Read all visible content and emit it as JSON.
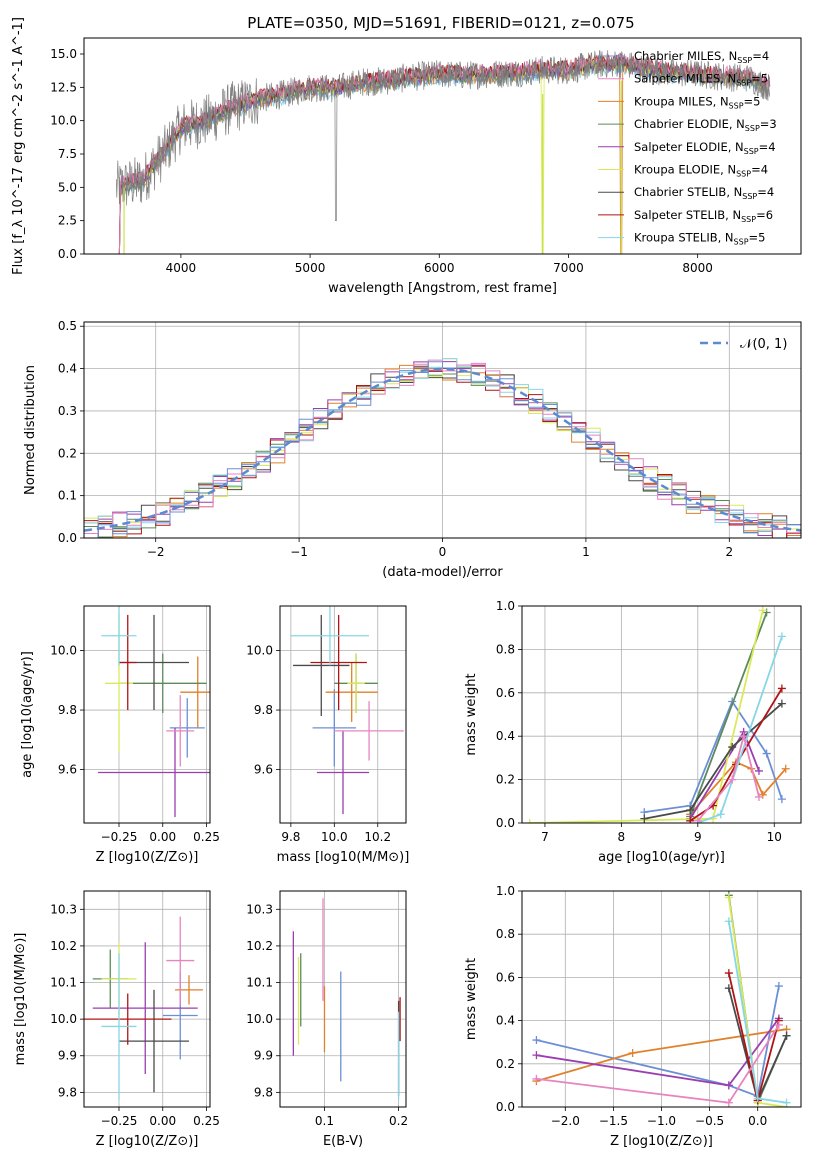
{
  "figure": {
    "title": "PLATE=0350, MJD=51691, FIBERID=0121, z=0.075"
  },
  "colors": {
    "series": [
      "#6b8fd6",
      "#e0812b",
      "#5c8a5c",
      "#9a3fb0",
      "#d8ea5a",
      "#4a4a4a",
      "#b01515",
      "#87d6e6",
      "#e883c0"
    ],
    "grid": "#b0b0b0",
    "data": "#7f7f7f"
  },
  "chart_data": [
    {
      "id": "spectrum",
      "type": "line",
      "xlabel": "wavelength [Angstrom, rest frame]",
      "ylabel": "Flux [f_λ 10^-17 erg cm^-2 s^-1 A^-1]",
      "xlim": [
        3250,
        8800
      ],
      "ylim": [
        0,
        16.2
      ],
      "xticks": [
        4000,
        5000,
        6000,
        7000,
        8000
      ],
      "yticks": [
        0.0,
        2.5,
        5.0,
        7.5,
        10.0,
        12.5,
        15.0
      ],
      "xticklabels": [
        "4000",
        "5000",
        "6000",
        "7000",
        "8000"
      ],
      "yticklabels": [
        "0.0",
        "2.5",
        "5.0",
        "7.5",
        "10.0",
        "12.5",
        "15.0"
      ],
      "continuum": [
        {
          "x": 3500,
          "y": 5.0
        },
        {
          "x": 3700,
          "y": 5.5
        },
        {
          "x": 3900,
          "y": 8.0
        },
        {
          "x": 4000,
          "y": 9.5
        },
        {
          "x": 4200,
          "y": 10.0
        },
        {
          "x": 4400,
          "y": 11.0
        },
        {
          "x": 4600,
          "y": 11.6
        },
        {
          "x": 4800,
          "y": 12.0
        },
        {
          "x": 5000,
          "y": 12.5
        },
        {
          "x": 5200,
          "y": 12.4
        },
        {
          "x": 5400,
          "y": 12.9
        },
        {
          "x": 5600,
          "y": 13.0
        },
        {
          "x": 5800,
          "y": 13.3
        },
        {
          "x": 6000,
          "y": 13.5
        },
        {
          "x": 6200,
          "y": 13.4
        },
        {
          "x": 6400,
          "y": 13.5
        },
        {
          "x": 6600,
          "y": 13.6
        },
        {
          "x": 6800,
          "y": 13.8
        },
        {
          "x": 7000,
          "y": 13.8
        },
        {
          "x": 7200,
          "y": 14.2
        },
        {
          "x": 7400,
          "y": 14.3
        },
        {
          "x": 7600,
          "y": 13.9
        },
        {
          "x": 7800,
          "y": 13.6
        },
        {
          "x": 8000,
          "y": 13.5
        },
        {
          "x": 8200,
          "y": 13.3
        },
        {
          "x": 8400,
          "y": 13.2
        },
        {
          "x": 8550,
          "y": 12.5
        }
      ],
      "legend": [
        "Chabrier MILES, N_SSP=4",
        "Salpeter MILES, N_SSP=5",
        "Kroupa MILES, N_SSP=5",
        "Chabrier ELODIE, N_SSP=3",
        "Salpeter ELODIE, N_SSP=4",
        "Kroupa ELODIE, N_SSP=4",
        "Chabrier STELIB, N_SSP=4",
        "Salpeter STELIB, N_SSP=6",
        "Kroupa STELIB, N_SSP=5"
      ],
      "legend_colors": [
        "#6b8fd6",
        "#e883c0",
        "#e0812b",
        "#5c8a5c",
        "#9a3fb0",
        "#d8ea5a",
        "#4a4a4a",
        "#b01515",
        "#87d6e6"
      ],
      "legend_placement": "upper right",
      "grid": false
    },
    {
      "id": "residuals",
      "type": "line",
      "xlabel": "(data-model)/error",
      "ylabel": "Normed distribution",
      "xlim": [
        -2.5,
        2.5
      ],
      "ylim": [
        0,
        0.51
      ],
      "xticks": [
        -2,
        -1,
        0,
        1,
        2
      ],
      "yticks": [
        0.0,
        0.1,
        0.2,
        0.3,
        0.4,
        0.5
      ],
      "xticklabels": [
        "−2",
        "−1",
        "0",
        "1",
        "2"
      ],
      "yticklabels": [
        "0.0",
        "0.1",
        "0.2",
        "0.3",
        "0.4",
        "0.5"
      ],
      "gaussian": {
        "mu": 0,
        "sigma": 1,
        "label": "𝒩(0, 1)"
      },
      "bin_width": 0.1,
      "grid": true
    },
    {
      "id": "age-vs-z",
      "type": "scatter",
      "xlabel": "Z [log10(Z/Z⊙)]",
      "ylabel": "age  [log10(age/yr)]",
      "xlim": [
        -0.45,
        0.27
      ],
      "ylim": [
        9.42,
        10.15
      ],
      "xticks": [
        -0.25,
        0.0,
        0.25
      ],
      "yticks": [
        9.6,
        9.8,
        10.0
      ],
      "xticklabels": [
        "−0.25",
        "0.00",
        "0.25"
      ],
      "yticklabels": [
        "9.6",
        "9.8",
        "10.0"
      ],
      "points": [
        {
          "x": 0.14,
          "y": 9.74,
          "xerr": 0.1,
          "yerr": 0.1
        },
        {
          "x": 0.2,
          "y": 9.86,
          "xerr": 0.1,
          "yerr": 0.12
        },
        {
          "x": 0.0,
          "y": 9.89,
          "xerr": 0.25,
          "yerr": 0.1
        },
        {
          "x": 0.07,
          "y": 9.59,
          "xerr": 0.44,
          "yerr": 0.15
        },
        {
          "x": -0.25,
          "y": 9.89,
          "xerr": 0.08,
          "yerr": 0.23
        },
        {
          "x": -0.05,
          "y": 9.96,
          "xerr": 0.2,
          "yerr": 0.16
        },
        {
          "x": -0.2,
          "y": 9.96,
          "xerr": 0.05,
          "yerr": 0.16
        },
        {
          "x": -0.25,
          "y": 10.05,
          "xerr": 0.1,
          "yerr": 0.1
        },
        {
          "x": 0.1,
          "y": 9.73,
          "xerr": 0.08,
          "yerr": 0.12
        }
      ],
      "grid": true
    },
    {
      "id": "age-vs-mass",
      "type": "scatter",
      "xlabel": "mass [log10(M/M⊙)]",
      "ylabel": "",
      "xlim": [
        9.75,
        10.33
      ],
      "ylim": [
        9.42,
        10.15
      ],
      "xticks": [
        9.8,
        10.0,
        10.2
      ],
      "yticks": [
        9.6,
        9.8,
        10.0
      ],
      "xticklabels": [
        "9.8",
        "10.0",
        "10.2"
      ],
      "yticklabels": [
        "9.6",
        "9.8",
        "10.0"
      ],
      "points": [
        {
          "x": 10.0,
          "y": 9.74,
          "xerr": 0.1,
          "yerr": 0.13
        },
        {
          "x": 10.08,
          "y": 9.86,
          "xerr": 0.12,
          "yerr": 0.1
        },
        {
          "x": 10.1,
          "y": 9.89,
          "xerr": 0.1,
          "yerr": 0.1
        },
        {
          "x": 10.04,
          "y": 9.59,
          "xerr": 0.12,
          "yerr": 0.14
        },
        {
          "x": 10.1,
          "y": 9.89,
          "xerr": 0.04,
          "yerr": 0.1
        },
        {
          "x": 9.94,
          "y": 9.95,
          "xerr": 0.13,
          "yerr": 0.17
        },
        {
          "x": 10.02,
          "y": 9.96,
          "xerr": 0.13,
          "yerr": 0.16
        },
        {
          "x": 9.98,
          "y": 10.05,
          "xerr": 0.18,
          "yerr": 0.1
        },
        {
          "x": 10.16,
          "y": 9.73,
          "xerr": 0.16,
          "yerr": 0.1
        }
      ],
      "grid": true
    },
    {
      "id": "weight-vs-age",
      "type": "line",
      "xlabel": "age  [log10(age/yr)]",
      "ylabel": "mass weight",
      "xlim": [
        6.7,
        10.35
      ],
      "ylim": [
        0,
        1.0
      ],
      "xticks": [
        7,
        8,
        9,
        10
      ],
      "yticks": [
        0.0,
        0.2,
        0.4,
        0.6,
        0.8,
        1.0
      ],
      "xticklabels": [
        "7",
        "8",
        "9",
        "10"
      ],
      "yticklabels": [
        "0.0",
        "0.2",
        "0.4",
        "0.6",
        "0.8",
        "1.0"
      ],
      "series": [
        {
          "x": [
            8.3,
            8.9,
            9.45,
            9.9,
            10.1
          ],
          "y": [
            0.05,
            0.08,
            0.56,
            0.32,
            0.11
          ]
        },
        {
          "x": [
            8.9,
            9.5,
            9.7,
            9.85,
            10.15
          ],
          "y": [
            0.04,
            0.28,
            0.25,
            0.13,
            0.25
          ]
        },
        {
          "x": [
            8.9,
            9.9
          ],
          "y": [
            0.03,
            0.97
          ]
        },
        {
          "x": [
            8.9,
            9.6,
            9.8
          ],
          "y": [
            0.02,
            0.42,
            0.24
          ]
        },
        {
          "x": [
            6.8,
            9.2,
            9.85
          ],
          "y": [
            0.0,
            0.02,
            0.98
          ]
        },
        {
          "x": [
            8.3,
            8.9,
            9.45,
            10.1
          ],
          "y": [
            0.02,
            0.06,
            0.35,
            0.55
          ]
        },
        {
          "x": [
            8.9,
            9.2,
            9.5,
            10.1
          ],
          "y": [
            0.01,
            0.08,
            0.27,
            0.62
          ]
        },
        {
          "x": [
            9.0,
            9.3,
            10.1
          ],
          "y": [
            0.0,
            0.04,
            0.86
          ]
        },
        {
          "x": [
            9.0,
            9.45,
            9.6,
            9.8
          ],
          "y": [
            0.01,
            0.2,
            0.4,
            0.12
          ]
        }
      ],
      "grid": true
    },
    {
      "id": "mass-vs-z",
      "type": "scatter",
      "xlabel": "Z [log10(Z/Z⊙)]",
      "ylabel": "mass [log10(M/M⊙)]",
      "xlim": [
        -0.45,
        0.27
      ],
      "ylim": [
        9.76,
        10.35
      ],
      "xticks": [
        -0.25,
        0.0,
        0.25
      ],
      "yticks": [
        9.8,
        9.9,
        10.0,
        10.1,
        10.2,
        10.3
      ],
      "xticklabels": [
        "−0.25",
        "0.00",
        "0.25"
      ],
      "yticklabels": [
        "9.8",
        "9.9",
        "10.0",
        "10.1",
        "10.2",
        "10.3"
      ],
      "points": [
        {
          "x": 0.1,
          "y": 10.01,
          "xerr": 0.1,
          "yerr": 0.12
        },
        {
          "x": 0.15,
          "y": 10.08,
          "xerr": 0.08,
          "yerr": 0.04
        },
        {
          "x": -0.3,
          "y": 10.11,
          "xerr": 0.1,
          "yerr": 0.08
        },
        {
          "x": -0.1,
          "y": 10.03,
          "xerr": 0.3,
          "yerr": 0.18
        },
        {
          "x": -0.25,
          "y": 10.11,
          "xerr": 0.1,
          "yerr": 0.1
        },
        {
          "x": -0.05,
          "y": 9.94,
          "xerr": 0.2,
          "yerr": 0.14
        },
        {
          "x": -0.2,
          "y": 10.0,
          "xerr": 0.25,
          "yerr": 0.07
        },
        {
          "x": -0.25,
          "y": 9.98,
          "xerr": 0.1,
          "yerr": 0.2
        },
        {
          "x": 0.1,
          "y": 10.16,
          "xerr": 0.08,
          "yerr": 0.12
        }
      ],
      "grid": true
    },
    {
      "id": "mass-vs-ebv",
      "type": "scatter",
      "xlabel": "E(B-V)",
      "ylabel": "",
      "xlim": [
        0.04,
        0.21
      ],
      "ylim": [
        9.76,
        10.35
      ],
      "xticks": [
        0.1,
        0.2
      ],
      "yticks": [
        9.8,
        9.9,
        10.0,
        10.1,
        10.2,
        10.3
      ],
      "xticklabels": [
        "0.1",
        "0.2"
      ],
      "yticklabels": [
        "9.8",
        "9.9",
        "10.0",
        "10.1",
        "10.2",
        "10.3"
      ],
      "points": [
        {
          "x": 0.122,
          "y": 9.98,
          "xerr": 0,
          "yerr": 0.15
        },
        {
          "x": 0.1,
          "y": 10.0,
          "xerr": 0,
          "yerr": 0.09
        },
        {
          "x": 0.068,
          "y": 10.08,
          "xerr": 0,
          "yerr": 0.1
        },
        {
          "x": 0.058,
          "y": 10.07,
          "xerr": 0,
          "yerr": 0.17
        },
        {
          "x": 0.065,
          "y": 10.05,
          "xerr": 0,
          "yerr": 0.12
        },
        {
          "x": 0.2,
          "y": 9.92,
          "xerr": 0,
          "yerr": 0.13
        },
        {
          "x": 0.202,
          "y": 10.0,
          "xerr": 0,
          "yerr": 0.06
        },
        {
          "x": 0.2,
          "y": 9.9,
          "xerr": 0,
          "yerr": 0.12
        },
        {
          "x": 0.098,
          "y": 10.19,
          "xerr": 0,
          "yerr": 0.14
        }
      ],
      "grid": true
    },
    {
      "id": "weight-vs-z",
      "type": "line",
      "xlabel": "Z [log10(Z/Z⊙)]",
      "ylabel": "mass weight",
      "xlim": [
        -2.45,
        0.45
      ],
      "ylim": [
        0,
        1.0
      ],
      "xticks": [
        -2.0,
        -1.5,
        -1.0,
        -0.5,
        0.0
      ],
      "yticks": [
        0.0,
        0.2,
        0.4,
        0.6,
        0.8,
        1.0
      ],
      "xticklabels": [
        "−2.0",
        "−1.5",
        "−1.0",
        "−0.5",
        "0.0"
      ],
      "yticklabels": [
        "0.0",
        "0.2",
        "0.4",
        "0.6",
        "0.8",
        "1.0"
      ],
      "series": [
        {
          "x": [
            -2.3,
            -0.3,
            0.0,
            0.22
          ],
          "y": [
            0.31,
            0.1,
            0.05,
            0.56
          ]
        },
        {
          "x": [
            -2.3,
            -1.3,
            0.3
          ],
          "y": [
            0.12,
            0.25,
            0.36
          ]
        },
        {
          "x": [
            -0.3,
            0.0,
            0.3
          ],
          "y": [
            0.98,
            0.02,
            0.33
          ]
        },
        {
          "x": [
            -2.3,
            -0.3,
            0.22
          ],
          "y": [
            0.24,
            0.1,
            0.41
          ]
        },
        {
          "x": [
            -0.3,
            0.0,
            0.3
          ],
          "y": [
            0.97,
            0.02,
            0.0
          ]
        },
        {
          "x": [
            -0.3,
            0.0,
            0.3
          ],
          "y": [
            0.55,
            0.03,
            0.33
          ]
        },
        {
          "x": [
            -0.3,
            0.0,
            0.22
          ],
          "y": [
            0.62,
            0.03,
            0.4
          ]
        },
        {
          "x": [
            -0.3,
            0.0,
            0.3
          ],
          "y": [
            0.86,
            0.04,
            0.02
          ]
        },
        {
          "x": [
            -2.3,
            -0.3,
            0.22
          ],
          "y": [
            0.13,
            0.02,
            0.38
          ]
        }
      ],
      "grid": true
    }
  ]
}
